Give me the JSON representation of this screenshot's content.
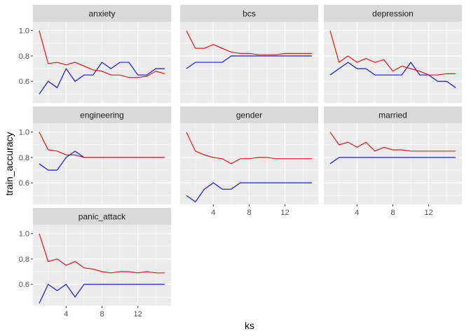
{
  "chart_data": {
    "type": "line",
    "xlabel": "ks",
    "ylabel": "train_accuracy",
    "xlim": [
      0.3,
      15.7
    ],
    "ylim": [
      0.43,
      1.07
    ],
    "x_ticks": [
      4,
      8,
      12
    ],
    "y_ticks": [
      0.6,
      0.8,
      1.0
    ],
    "y_tick_labels": [
      "0.6",
      "0.8",
      "1.0"
    ],
    "x_tick_labels": [
      "4",
      "8",
      "12"
    ],
    "colors": {
      "red": "#ee0000",
      "blue": "#0000ee"
    },
    "x": [
      1,
      2,
      3,
      4,
      5,
      6,
      7,
      8,
      9,
      10,
      11,
      12,
      13,
      14,
      15
    ],
    "panels": [
      {
        "label": "anxiety",
        "red": [
          1.0,
          0.74,
          0.75,
          0.73,
          0.75,
          0.72,
          0.69,
          0.68,
          0.65,
          0.65,
          0.63,
          0.63,
          0.64,
          0.68,
          0.66
        ],
        "blue": [
          0.5,
          0.6,
          0.55,
          0.7,
          0.6,
          0.65,
          0.65,
          0.75,
          0.7,
          0.75,
          0.75,
          0.65,
          0.65,
          0.7,
          0.7
        ]
      },
      {
        "label": "bcs",
        "red": [
          1.0,
          0.86,
          0.86,
          0.89,
          0.86,
          0.83,
          0.82,
          0.82,
          0.81,
          0.81,
          0.81,
          0.82,
          0.82,
          0.82,
          0.82
        ],
        "blue": [
          0.7,
          0.75,
          0.75,
          0.75,
          0.75,
          0.8,
          0.8,
          0.8,
          0.8,
          0.8,
          0.8,
          0.8,
          0.8,
          0.8,
          0.8
        ]
      },
      {
        "label": "depression",
        "red": [
          1.0,
          0.75,
          0.8,
          0.75,
          0.78,
          0.75,
          0.77,
          0.68,
          0.72,
          0.7,
          0.68,
          0.65,
          0.65,
          0.66,
          0.66
        ],
        "blue": [
          0.65,
          0.7,
          0.75,
          0.7,
          0.7,
          0.65,
          0.65,
          0.65,
          0.65,
          0.75,
          0.65,
          0.65,
          0.6,
          0.6,
          0.55
        ]
      },
      {
        "label": "engineering",
        "red": [
          1.0,
          0.86,
          0.85,
          0.82,
          0.82,
          0.8,
          0.8,
          0.8,
          0.8,
          0.8,
          0.8,
          0.8,
          0.8,
          0.8,
          0.8
        ],
        "blue": [
          0.75,
          0.7,
          0.7,
          0.8,
          0.85,
          0.8,
          0.8,
          0.8,
          0.8,
          0.8,
          0.8,
          0.8,
          0.8,
          0.8,
          0.8
        ]
      },
      {
        "label": "gender",
        "red": [
          1.0,
          0.85,
          0.82,
          0.8,
          0.79,
          0.75,
          0.79,
          0.79,
          0.8,
          0.8,
          0.79,
          0.79,
          0.79,
          0.79,
          0.79
        ],
        "blue": [
          0.5,
          0.45,
          0.55,
          0.6,
          0.55,
          0.55,
          0.6,
          0.6,
          0.6,
          0.6,
          0.6,
          0.6,
          0.6,
          0.6,
          0.6
        ]
      },
      {
        "label": "married",
        "red": [
          1.0,
          0.9,
          0.92,
          0.88,
          0.92,
          0.85,
          0.88,
          0.86,
          0.86,
          0.85,
          0.85,
          0.85,
          0.85,
          0.85,
          0.85
        ],
        "blue": [
          0.75,
          0.8,
          0.8,
          0.8,
          0.8,
          0.8,
          0.8,
          0.8,
          0.8,
          0.8,
          0.8,
          0.8,
          0.8,
          0.8,
          0.8
        ]
      },
      {
        "label": "panic_attack",
        "red": [
          1.0,
          0.78,
          0.8,
          0.75,
          0.78,
          0.73,
          0.72,
          0.7,
          0.69,
          0.7,
          0.7,
          0.69,
          0.7,
          0.69,
          0.69
        ],
        "blue": [
          0.45,
          0.6,
          0.55,
          0.6,
          0.5,
          0.6,
          0.6,
          0.6,
          0.6,
          0.6,
          0.6,
          0.6,
          0.6,
          0.6,
          0.6
        ]
      }
    ]
  }
}
